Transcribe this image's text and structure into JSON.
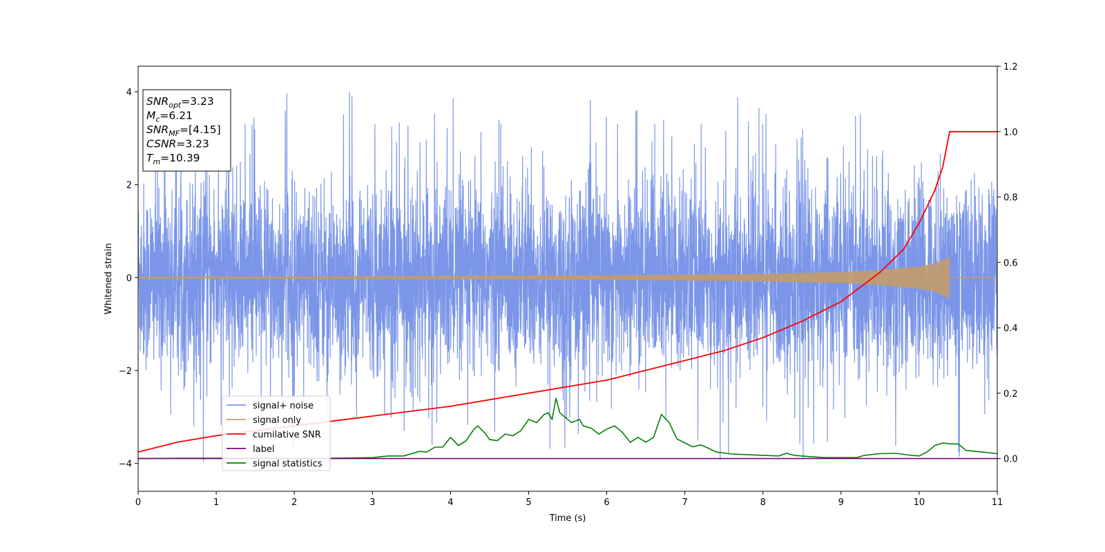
{
  "chart_data": {
    "type": "line",
    "xlabel": "Time (s)",
    "ylabel": "Whitened strain",
    "xlim": [
      0,
      11
    ],
    "ylim_left": [
      -4.6,
      4.55
    ],
    "ylim_right": [
      -0.1,
      1.2
    ],
    "x_ticks": [
      "0",
      "1",
      "2",
      "3",
      "4",
      "5",
      "6",
      "7",
      "8",
      "9",
      "10",
      "11"
    ],
    "y_ticks_left": [
      "4",
      "2",
      "0",
      "−2",
      "−4"
    ],
    "y_tick_values_left": [
      4,
      2,
      0,
      -2,
      -4
    ],
    "y_ticks_right": [
      "1.2",
      "1.0",
      "0.8",
      "0.6",
      "0.4",
      "0.2",
      "0.0"
    ],
    "y_tick_values_right": [
      1.2,
      1.0,
      0.8,
      0.6,
      0.4,
      0.2,
      0.0
    ],
    "grid": false,
    "legend_position": "lower-left",
    "annotation_box": {
      "lines": [
        {
          "sym": "SNR",
          "sub": "opt",
          "rest": "=3.23"
        },
        {
          "sym": "M",
          "sub": "c",
          "rest": "=6.21"
        },
        {
          "sym": "SNR",
          "sub": "MF",
          "rest": "=[4.15]"
        },
        {
          "sym": "CSNR",
          "sub": "",
          "rest": "=3.23"
        },
        {
          "sym": "T",
          "sub": "m",
          "rest": "=10.39"
        }
      ]
    },
    "series": [
      {
        "name": "signal+ noise",
        "color": "#7b96e8",
        "axis": "left",
        "note": "noise with approx std 1.0 around 0, spikes up to ~4.1 and down to ~-4.1",
        "envelope_upper": [
          [
            0,
            2.5
          ],
          [
            1,
            2.6
          ],
          [
            2,
            2.5
          ],
          [
            3,
            2.6
          ],
          [
            4,
            2.8
          ],
          [
            5,
            2.7
          ],
          [
            6,
            2.6
          ],
          [
            7,
            2.6
          ],
          [
            8,
            2.5
          ],
          [
            9,
            2.6
          ],
          [
            10,
            2.6
          ],
          [
            11,
            2.5
          ]
        ],
        "envelope_lower": [
          [
            0,
            -2.4
          ],
          [
            1,
            -2.5
          ],
          [
            2,
            -2.4
          ],
          [
            3,
            -2.5
          ],
          [
            4,
            -2.6
          ],
          [
            5,
            -2.6
          ],
          [
            6,
            -2.5
          ],
          [
            7,
            -2.5
          ],
          [
            8,
            -2.5
          ],
          [
            9,
            -2.5
          ],
          [
            10,
            -2.5
          ],
          [
            11,
            -2.4
          ]
        ]
      },
      {
        "name": "signal only",
        "color": "#c39b6c",
        "axis": "left",
        "note": "chirp growing in amplitude until merger at ~10.39 s, then zero",
        "amplitude": [
          [
            0,
            0.02
          ],
          [
            3,
            0.03
          ],
          [
            6,
            0.05
          ],
          [
            8,
            0.08
          ],
          [
            9,
            0.12
          ],
          [
            9.5,
            0.16
          ],
          [
            10,
            0.24
          ],
          [
            10.2,
            0.3
          ],
          [
            10.3,
            0.38
          ],
          [
            10.39,
            0.45
          ]
        ],
        "end_time": 10.39
      },
      {
        "name": "cumilative SNR",
        "color": "#ff0000",
        "axis": "right",
        "points": [
          [
            0,
            0.02
          ],
          [
            0.5,
            0.05
          ],
          [
            1,
            0.07
          ],
          [
            2,
            0.1
          ],
          [
            3,
            0.13
          ],
          [
            4,
            0.16
          ],
          [
            5,
            0.2
          ],
          [
            6,
            0.24
          ],
          [
            7,
            0.3
          ],
          [
            7.5,
            0.33
          ],
          [
            8,
            0.37
          ],
          [
            8.5,
            0.42
          ],
          [
            9,
            0.48
          ],
          [
            9.5,
            0.57
          ],
          [
            9.8,
            0.64
          ],
          [
            10,
            0.72
          ],
          [
            10.2,
            0.82
          ],
          [
            10.3,
            0.89
          ],
          [
            10.35,
            0.95
          ],
          [
            10.39,
            1.0
          ],
          [
            11,
            1.0
          ]
        ]
      },
      {
        "name": "label",
        "color": "#800080",
        "axis": "right",
        "points": [
          [
            0,
            0.0
          ],
          [
            11,
            0.0
          ]
        ]
      },
      {
        "name": "signal statistics",
        "color": "#008000",
        "axis": "right",
        "points": [
          [
            0,
            0.0
          ],
          [
            0.5,
            0.001
          ],
          [
            1,
            0.001
          ],
          [
            1.5,
            0.001
          ],
          [
            2,
            0.0
          ],
          [
            2.5,
            0.001
          ],
          [
            3,
            0.003
          ],
          [
            3.2,
            0.008
          ],
          [
            3.4,
            0.008
          ],
          [
            3.6,
            0.022
          ],
          [
            3.7,
            0.02
          ],
          [
            3.8,
            0.035
          ],
          [
            3.9,
            0.035
          ],
          [
            4.0,
            0.065
          ],
          [
            4.1,
            0.04
          ],
          [
            4.2,
            0.055
          ],
          [
            4.3,
            0.09
          ],
          [
            4.35,
            0.1
          ],
          [
            4.45,
            0.075
          ],
          [
            4.5,
            0.058
          ],
          [
            4.6,
            0.055
          ],
          [
            4.7,
            0.075
          ],
          [
            4.8,
            0.07
          ],
          [
            4.9,
            0.085
          ],
          [
            5.0,
            0.12
          ],
          [
            5.1,
            0.11
          ],
          [
            5.2,
            0.135
          ],
          [
            5.25,
            0.14
          ],
          [
            5.3,
            0.12
          ],
          [
            5.35,
            0.185
          ],
          [
            5.4,
            0.14
          ],
          [
            5.5,
            0.12
          ],
          [
            5.55,
            0.11
          ],
          [
            5.65,
            0.12
          ],
          [
            5.7,
            0.1
          ],
          [
            5.8,
            0.093
          ],
          [
            5.9,
            0.075
          ],
          [
            6.0,
            0.09
          ],
          [
            6.1,
            0.1
          ],
          [
            6.2,
            0.08
          ],
          [
            6.3,
            0.05
          ],
          [
            6.4,
            0.065
          ],
          [
            6.5,
            0.05
          ],
          [
            6.6,
            0.065
          ],
          [
            6.7,
            0.135
          ],
          [
            6.8,
            0.11
          ],
          [
            6.9,
            0.06
          ],
          [
            7.0,
            0.048
          ],
          [
            7.1,
            0.036
          ],
          [
            7.2,
            0.042
          ],
          [
            7.3,
            0.032
          ],
          [
            7.4,
            0.02
          ],
          [
            7.6,
            0.014
          ],
          [
            7.8,
            0.012
          ],
          [
            8.0,
            0.01
          ],
          [
            8.2,
            0.008
          ],
          [
            8.3,
            0.016
          ],
          [
            8.4,
            0.01
          ],
          [
            8.6,
            0.006
          ],
          [
            8.8,
            0.003
          ],
          [
            9.0,
            0.003
          ],
          [
            9.2,
            0.003
          ],
          [
            9.3,
            0.01
          ],
          [
            9.5,
            0.015
          ],
          [
            9.7,
            0.016
          ],
          [
            9.9,
            0.01
          ],
          [
            10.0,
            0.008
          ],
          [
            10.1,
            0.02
          ],
          [
            10.2,
            0.04
          ],
          [
            10.3,
            0.048
          ],
          [
            10.4,
            0.045
          ],
          [
            10.5,
            0.045
          ],
          [
            10.6,
            0.025
          ],
          [
            10.8,
            0.02
          ],
          [
            11,
            0.015
          ]
        ]
      }
    ]
  }
}
